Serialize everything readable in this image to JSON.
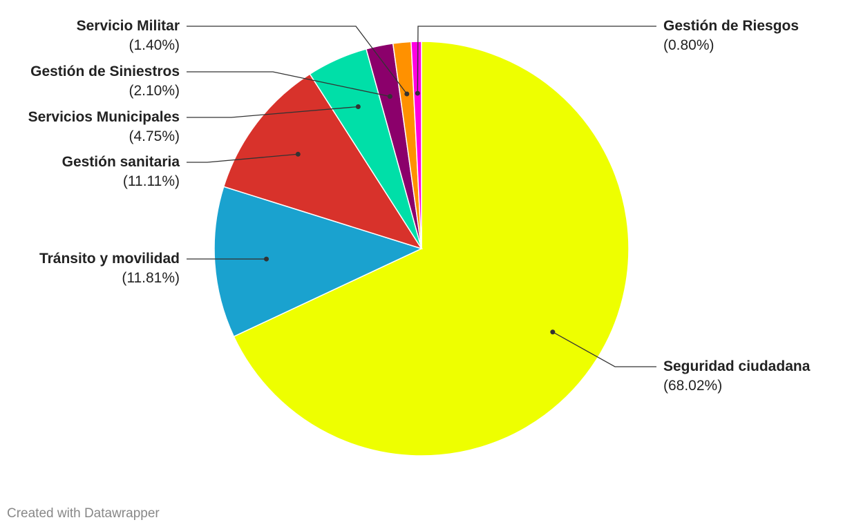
{
  "chart_data": {
    "type": "pie",
    "categories": [
      "Seguridad ciudadana",
      "Tránsito y movilidad",
      "Gestión sanitaria",
      "Servicios Municipales",
      "Gestión de Siniestros",
      "Servicio Militar",
      "Gestión de Riesgos"
    ],
    "values": [
      68.02,
      11.81,
      11.11,
      4.75,
      2.1,
      1.4,
      0.8
    ],
    "value_labels": [
      "(68.02%)",
      "(11.81%)",
      "(11.11%)",
      "(4.75%)",
      "(2.10%)",
      "(1.40%)",
      "(0.80%)"
    ],
    "colors": [
      "#eeff00",
      "#1aa2cf",
      "#d8322b",
      "#00dfa8",
      "#8b006b",
      "#ff9100",
      "#ff00e0"
    ]
  },
  "credit": "Created with Datawrapper"
}
